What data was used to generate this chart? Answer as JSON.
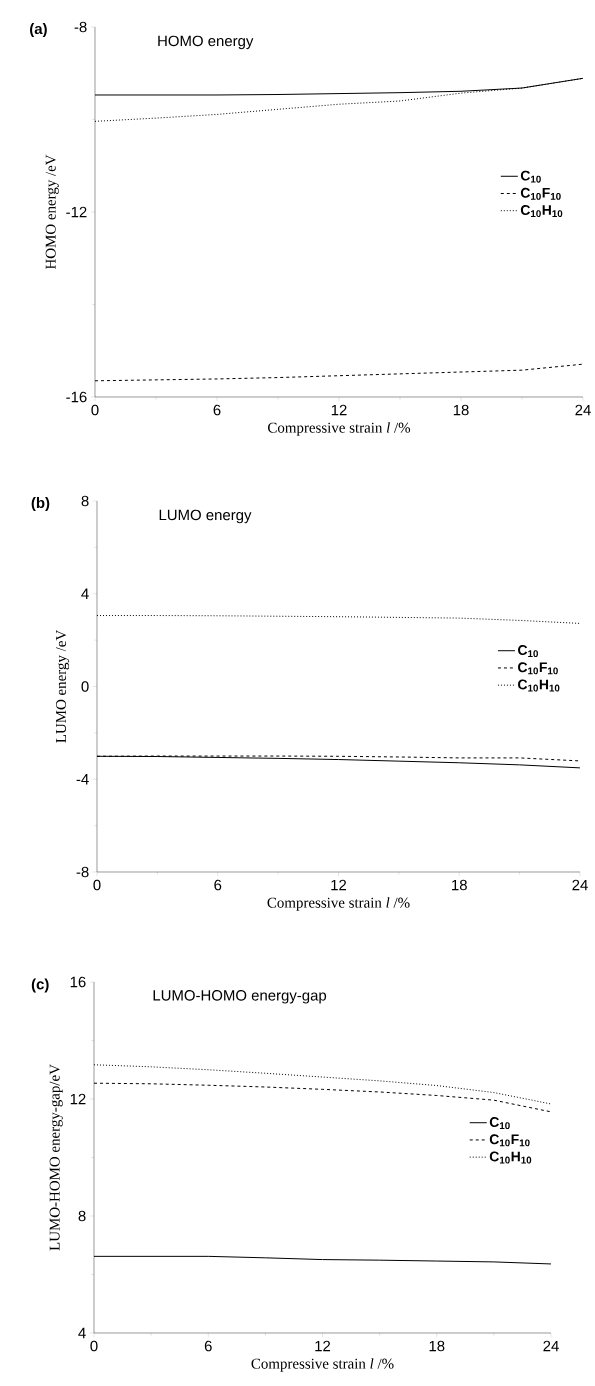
{
  "chart_data": [
    {
      "type": "line",
      "title": "HOMO energy",
      "annotations": [
        "(a)"
      ],
      "xlabel": "Compressive strain *l* /%",
      "ylabel": "HOMO energy /eV",
      "x": [
        0,
        3,
        6,
        9,
        12,
        15,
        18,
        21,
        24
      ],
      "xlim": [
        0,
        24
      ],
      "xticks": [
        0,
        6,
        12,
        18,
        24
      ],
      "ylim": [
        -16,
        -8
      ],
      "yticks": [
        -16,
        -12,
        -8
      ],
      "legend": "right",
      "grid": false,
      "series": [
        {
          "name": "C$_{10}$",
          "color": "#000000",
          "line_style": "solid",
          "values": [
            -9.47,
            -9.47,
            -9.47,
            -9.46,
            -9.44,
            -9.42,
            -9.39,
            -9.32,
            -9.11
          ]
        },
        {
          "name": "C$_{10}$F$_{10}$",
          "color": "#000000",
          "line_style": "dashed",
          "values": [
            -15.65,
            -15.63,
            -15.61,
            -15.58,
            -15.54,
            -15.5,
            -15.46,
            -15.42,
            -15.29
          ]
        },
        {
          "name": "C$_{10}$H$_{10}$",
          "color": "#000000",
          "line_style": "dotted",
          "values": [
            -10.04,
            -9.97,
            -9.89,
            -9.78,
            -9.67,
            -9.6,
            -9.43,
            -9.32,
            -9.11
          ]
        }
      ]
    },
    {
      "type": "line",
      "title": "LUMO energy",
      "annotations": [
        "(b)"
      ],
      "xlabel": "Compressive strain *l* /%",
      "ylabel": "LUMO energy /eV",
      "x": [
        0,
        3,
        6,
        9,
        12,
        15,
        18,
        21,
        24
      ],
      "xlim": [
        0,
        24
      ],
      "xticks": [
        0,
        6,
        12,
        18,
        24
      ],
      "ylim": [
        -8,
        8
      ],
      "yticks": [
        -8,
        -4,
        0,
        4,
        8
      ],
      "legend": "right",
      "grid": false,
      "series": [
        {
          "name": "C$_{10}$",
          "color": "#000000",
          "line_style": "solid",
          "values": [
            -3.01,
            -3.02,
            -3.06,
            -3.1,
            -3.15,
            -3.22,
            -3.29,
            -3.38,
            -3.51
          ]
        },
        {
          "name": "C$_{10}$F$_{10}$",
          "color": "#000000",
          "line_style": "dashed",
          "values": [
            -3.01,
            -3.0,
            -3.0,
            -3.0,
            -3.01,
            -3.04,
            -3.08,
            -3.08,
            -3.21
          ]
        },
        {
          "name": "C$_{10}$H$_{10}$",
          "color": "#000000",
          "line_style": "dotted",
          "values": [
            3.06,
            3.06,
            3.05,
            3.03,
            3.01,
            2.98,
            2.95,
            2.85,
            2.72
          ]
        }
      ]
    },
    {
      "type": "line",
      "title": "LUMO-HOMO energy-gap",
      "annotations": [
        "(c)"
      ],
      "xlabel": "Compressive strain *l* /%",
      "ylabel": "LUMO-HOMO energy-gap/eV",
      "x": [
        0,
        3,
        6,
        9,
        12,
        15,
        18,
        21,
        24
      ],
      "xlim": [
        0,
        24
      ],
      "xticks": [
        0,
        6,
        12,
        18,
        24
      ],
      "ylim": [
        4,
        16
      ],
      "yticks": [
        4,
        8,
        12,
        16
      ],
      "legend": "right",
      "grid": false,
      "series": [
        {
          "name": "C$_{10}$",
          "color": "#000000",
          "line_style": "solid",
          "values": [
            6.62,
            6.62,
            6.62,
            6.57,
            6.51,
            6.49,
            6.46,
            6.43,
            6.36
          ]
        },
        {
          "name": "C$_{10}$F$_{10}$",
          "color": "#000000",
          "line_style": "dashed",
          "values": [
            12.54,
            12.52,
            12.47,
            12.41,
            12.33,
            12.24,
            12.12,
            11.96,
            11.56
          ]
        },
        {
          "name": "C$_{10}$H$_{10}$",
          "color": "#000000",
          "line_style": "dotted",
          "values": [
            13.17,
            13.1,
            13.0,
            12.88,
            12.75,
            12.62,
            12.46,
            12.22,
            11.83
          ]
        }
      ]
    }
  ]
}
